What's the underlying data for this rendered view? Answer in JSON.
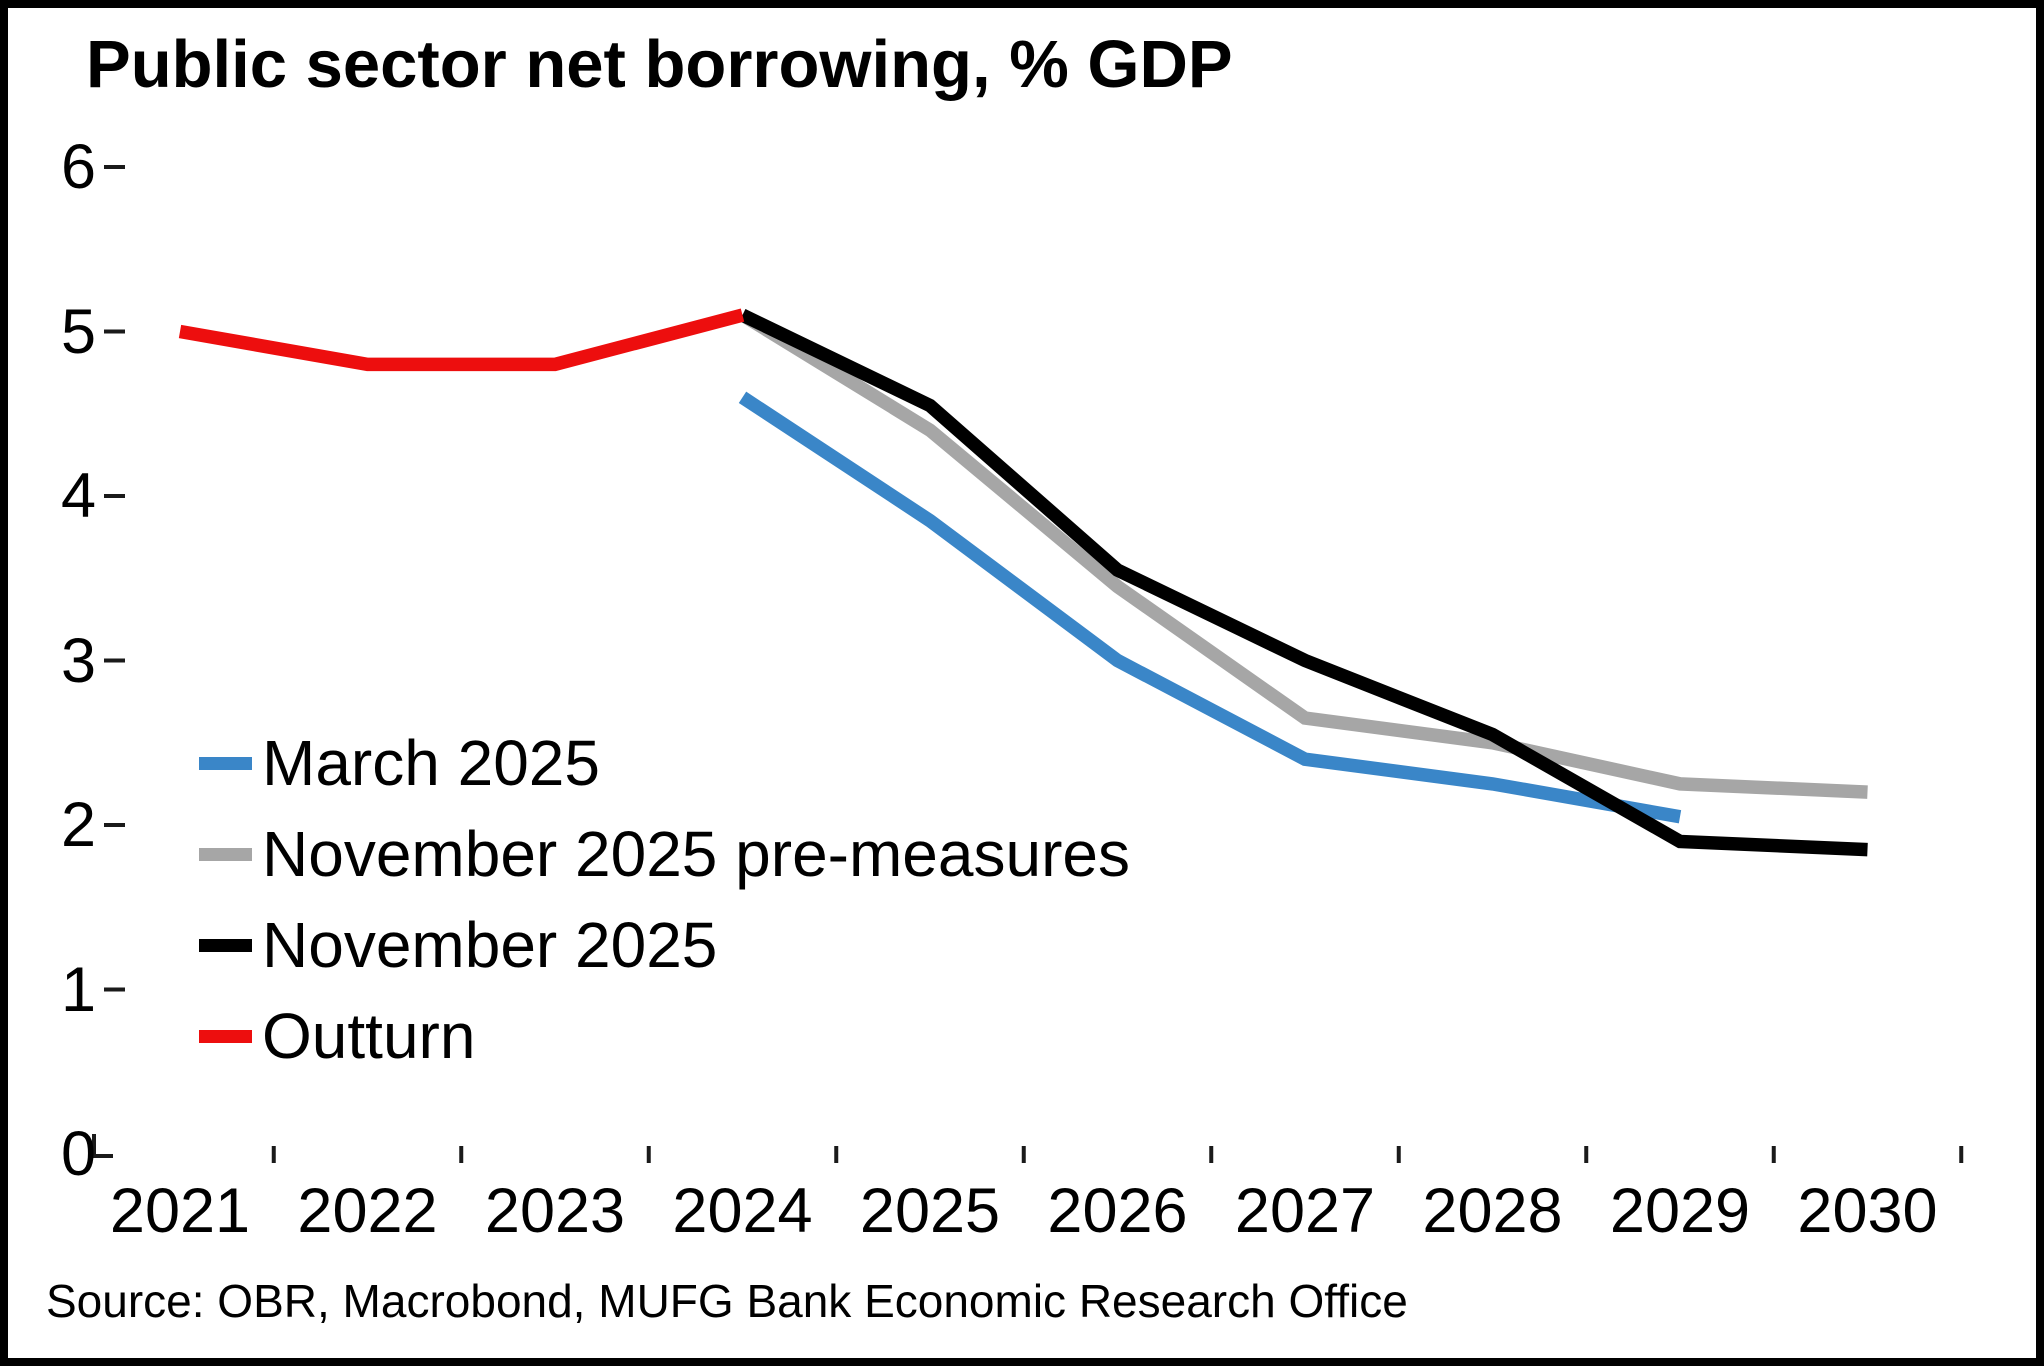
{
  "title": "Public sector net borrowing, % GDP",
  "source": "Source: OBR, Macrobond, MUFG Bank Economic Research Office",
  "colors": {
    "march_2025": "#3a86c8",
    "november_2025_pre_measures": "#a6a6a6",
    "november_2025": "#000000",
    "outturn": "#ed0e0e",
    "axis": "#1a1a1a"
  },
  "legend": {
    "items": [
      {
        "label": "March 2025",
        "color": "#3a86c8"
      },
      {
        "label": "November 2025 pre-measures",
        "color": "#a6a6a6"
      },
      {
        "label": "November 2025",
        "color": "#000000"
      },
      {
        "label": "Outturn",
        "color": "#ed0e0e"
      }
    ]
  },
  "chart_data": {
    "type": "line",
    "title": "Public sector net borrowing, % GDP",
    "xlabel": "",
    "ylabel": "",
    "xlim": [
      2020.5,
      2030.9
    ],
    "ylim": [
      0,
      6
    ],
    "yticks": [
      0,
      1,
      2,
      3,
      4,
      5,
      6
    ],
    "ytick_labels": [
      "0",
      "1",
      "2",
      "3",
      "4",
      "5",
      "6"
    ],
    "xtick_labels": [
      "2021",
      "2022",
      "2023",
      "2024",
      "2025",
      "2026",
      "2027",
      "2028",
      "2029",
      "2030"
    ],
    "x_years": [
      2021,
      2022,
      2023,
      2024,
      2025,
      2026,
      2027,
      2028,
      2029,
      2030
    ],
    "grid": false,
    "legend_position": "inside-left-middle",
    "series": [
      {
        "name": "March 2025",
        "color": "#3a86c8",
        "x": [
          2024,
          2025,
          2026,
          2027,
          2028,
          2029
        ],
        "values": [
          4.6,
          3.85,
          3.0,
          2.4,
          2.25,
          2.05
        ]
      },
      {
        "name": "November 2025 pre-measures",
        "color": "#a6a6a6",
        "x": [
          2024,
          2025,
          2026,
          2027,
          2028,
          2029,
          2030
        ],
        "values": [
          5.1,
          4.4,
          3.45,
          2.65,
          2.5,
          2.25,
          2.2
        ]
      },
      {
        "name": "November 2025",
        "color": "#000000",
        "x": [
          2024,
          2025,
          2026,
          2027,
          2028,
          2029,
          2030
        ],
        "values": [
          5.1,
          4.55,
          3.55,
          3.0,
          2.55,
          1.9,
          1.85
        ]
      },
      {
        "name": "Outturn",
        "color": "#ed0e0e",
        "x": [
          2021,
          2022,
          2023,
          2024
        ],
        "values": [
          5.0,
          4.8,
          4.8,
          5.1
        ]
      }
    ]
  }
}
